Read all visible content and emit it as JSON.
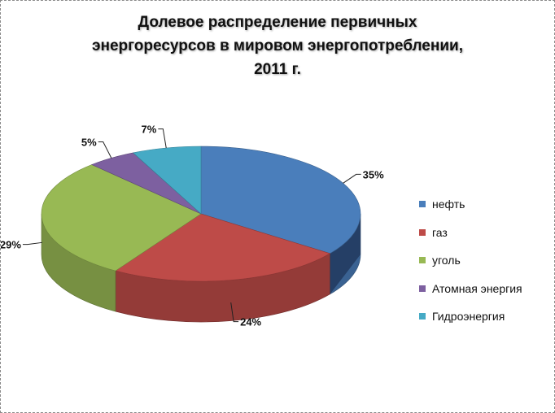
{
  "chart_data": {
    "type": "pie",
    "style": "3d",
    "title": [
      "Долевое распределение первичных",
      "энергоресурсов в мировом энергопотреблении,",
      "2011 г."
    ],
    "categories": [
      "нефть",
      "газ",
      "уголь",
      "Атомная энергия",
      "Гидроэнергия"
    ],
    "values": [
      35,
      24,
      29,
      5,
      7
    ],
    "data_labels": [
      "35%",
      "24%",
      "29%",
      "5%",
      "7%"
    ],
    "colors": [
      "#4a7ebb",
      "#be4b48",
      "#98b954",
      "#7d60a0",
      "#46aac5"
    ],
    "legend_position": "right"
  }
}
